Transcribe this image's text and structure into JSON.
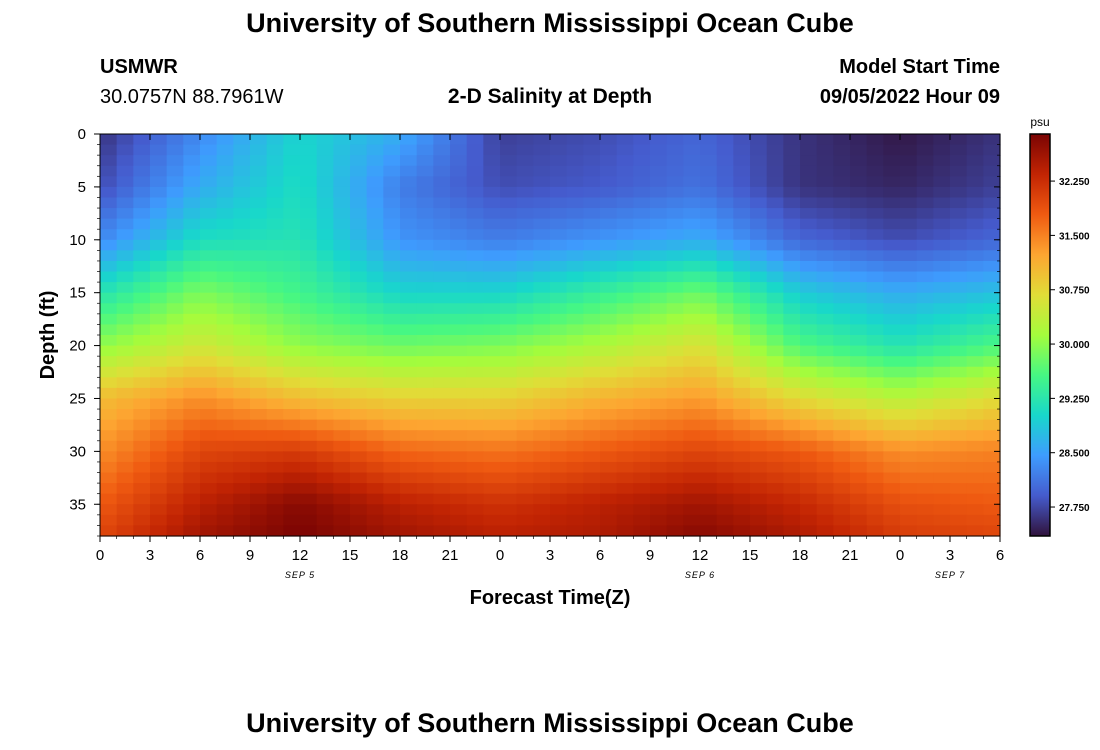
{
  "header": {
    "title": "University of Southern Mississippi Ocean Cube",
    "station": "USMWR",
    "coords": "30.0757N  88.7961W",
    "subtitle": "2-D Salinity at Depth",
    "start_label": "Model Start Time",
    "start_value": "09/05/2022 Hour 09"
  },
  "footer": {
    "title": "University of Southern Mississippi Ocean Cube"
  },
  "colors": {
    "background": "#ffffff",
    "text": "#000000",
    "colormap": "turbo"
  },
  "chart_data": {
    "type": "heatmap",
    "title": "2-D Salinity at Depth",
    "xlabel": "Forecast Time(Z)",
    "ylabel": "Depth (ft)",
    "x_range_hours": [
      0,
      54
    ],
    "ylim": [
      0,
      38
    ],
    "y_inverted": true,
    "x_tick_labels": [
      "0",
      "3",
      "6",
      "9",
      "12",
      "15",
      "18",
      "21",
      "0",
      "3",
      "6",
      "9",
      "12",
      "15",
      "18",
      "21",
      "0",
      "3",
      "6"
    ],
    "y_ticks": [
      0,
      5,
      10,
      15,
      20,
      25,
      30,
      35
    ],
    "date_labels": [
      {
        "text": "SEP 5",
        "hour": 12
      },
      {
        "text": "SEP 6",
        "hour": 36
      },
      {
        "text": "SEP 7",
        "hour": 51
      }
    ],
    "colorbar": {
      "unit": "psu",
      "min": 27.35,
      "max": 32.9,
      "ticks": [
        "32.250",
        "31.500",
        "30.750",
        "30.000",
        "29.250",
        "28.500",
        "27.750"
      ]
    },
    "salinity_at_depth_psu": {
      "depths_ft": [
        0,
        5,
        10,
        15,
        20,
        25,
        30,
        35,
        38
      ],
      "hours": [
        0,
        6,
        12,
        18,
        24,
        30,
        36,
        42,
        48,
        54
      ],
      "values": [
        [
          27.6,
          28.3,
          29.0,
          28.6,
          27.7,
          27.8,
          28.0,
          27.6,
          27.4,
          27.6
        ],
        [
          27.8,
          28.6,
          29.1,
          28.2,
          27.8,
          27.9,
          28.1,
          27.6,
          27.5,
          27.7
        ],
        [
          28.3,
          29.1,
          29.2,
          28.4,
          28.2,
          28.4,
          28.6,
          28.0,
          27.8,
          28.0
        ],
        [
          29.2,
          29.9,
          29.5,
          29.0,
          29.0,
          29.4,
          29.8,
          28.9,
          28.6,
          28.8
        ],
        [
          30.0,
          30.5,
          30.0,
          29.8,
          29.9,
          30.2,
          30.6,
          29.6,
          29.2,
          29.6
        ],
        [
          31.0,
          31.4,
          31.0,
          30.8,
          30.8,
          31.1,
          31.3,
          30.7,
          30.3,
          30.7
        ],
        [
          31.4,
          32.0,
          32.1,
          31.7,
          31.6,
          31.8,
          32.0,
          31.8,
          31.4,
          31.5
        ],
        [
          31.8,
          32.4,
          32.8,
          32.4,
          32.2,
          32.4,
          32.6,
          32.3,
          31.9,
          31.8
        ],
        [
          32.0,
          32.6,
          32.9,
          32.6,
          32.4,
          32.5,
          32.8,
          32.5,
          32.1,
          32.0
        ]
      ]
    }
  }
}
